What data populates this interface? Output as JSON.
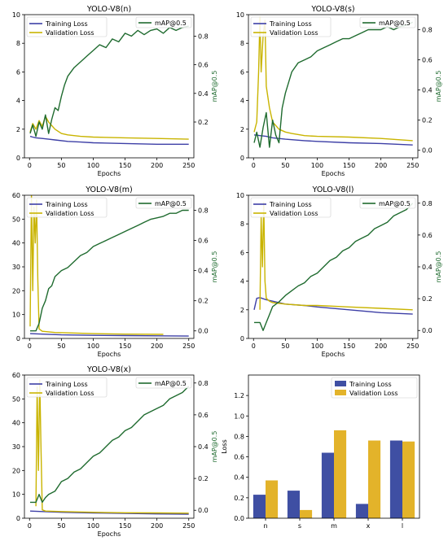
{
  "colors": {
    "training": "#3d3fa6",
    "validation": "#c9b400",
    "map": "#1f6b2f",
    "bar_training": "#3f4fa3",
    "bar_validation": "#e3b32a",
    "map_axis_label": "#1f6b2f"
  },
  "chart_data": [
    {
      "type": "line",
      "title": "YOLO-V8(n)",
      "xlabel": "Epochs",
      "ylabel": "",
      "y2label": "mAP@0.5",
      "xlim": [
        -8,
        258
      ],
      "ylim": [
        0,
        10
      ],
      "y2lim": [
        -0.05,
        0.95
      ],
      "xticks": [
        0,
        50,
        100,
        150,
        200,
        250
      ],
      "yticks": [
        0,
        2,
        4,
        6,
        8,
        10
      ],
      "y2ticks": [
        0.2,
        0.4,
        0.6,
        0.8
      ],
      "legend_left": [
        "Training Loss",
        "Validation Loss"
      ],
      "legend_right": [
        "mAP@0.5"
      ],
      "series": [
        {
          "name": "Training Loss",
          "axis": "left",
          "x": [
            1,
            5,
            10,
            20,
            30,
            40,
            60,
            80,
            100,
            150,
            200,
            250
          ],
          "y": [
            1.5,
            1.45,
            1.4,
            1.35,
            1.3,
            1.25,
            1.15,
            1.1,
            1.05,
            1.0,
            0.95,
            0.95
          ]
        },
        {
          "name": "Validation Loss",
          "axis": "left",
          "x": [
            1,
            5,
            10,
            15,
            20,
            25,
            30,
            40,
            50,
            60,
            80,
            100,
            150,
            200,
            250
          ],
          "y": [
            1.8,
            2.4,
            2.0,
            2.6,
            2.2,
            2.9,
            2.5,
            2.0,
            1.7,
            1.6,
            1.5,
            1.45,
            1.4,
            1.35,
            1.3
          ]
        },
        {
          "name": "mAP@0.5",
          "axis": "right",
          "x": [
            1,
            5,
            10,
            15,
            20,
            25,
            30,
            35,
            40,
            45,
            50,
            55,
            60,
            70,
            80,
            90,
            100,
            110,
            120,
            130,
            140,
            150,
            160,
            170,
            180,
            190,
            200,
            210,
            220,
            230,
            240,
            250
          ],
          "y": [
            0.12,
            0.18,
            0.1,
            0.2,
            0.15,
            0.25,
            0.12,
            0.22,
            0.3,
            0.28,
            0.38,
            0.46,
            0.52,
            0.58,
            0.62,
            0.66,
            0.7,
            0.74,
            0.72,
            0.78,
            0.76,
            0.82,
            0.8,
            0.84,
            0.81,
            0.84,
            0.85,
            0.82,
            0.86,
            0.84,
            0.86,
            0.87
          ]
        }
      ]
    },
    {
      "type": "line",
      "title": "YOLO-V8(s)",
      "xlabel": "Epochs",
      "ylabel": "",
      "y2label": "mAP@0.5",
      "xlim": [
        -8,
        258
      ],
      "ylim": [
        0,
        10
      ],
      "y2lim": [
        -0.05,
        0.9
      ],
      "xticks": [
        0,
        50,
        100,
        150,
        200,
        250
      ],
      "yticks": [
        0,
        2,
        4,
        6,
        8,
        10
      ],
      "y2ticks": [
        0.0,
        0.2,
        0.4,
        0.6,
        0.8
      ],
      "legend_left": [
        "Training Loss",
        "Validation Loss"
      ],
      "legend_right": [
        "mAP@0.5"
      ],
      "series": [
        {
          "name": "Training Loss",
          "axis": "left",
          "x": [
            1,
            10,
            20,
            30,
            50,
            80,
            100,
            150,
            200,
            250
          ],
          "y": [
            1.6,
            1.55,
            1.5,
            1.4,
            1.3,
            1.2,
            1.15,
            1.05,
            1.0,
            0.9
          ]
        },
        {
          "name": "Validation Loss",
          "axis": "left",
          "x": [
            1,
            5,
            8,
            10,
            12,
            15,
            18,
            20,
            25,
            30,
            40,
            50,
            60,
            80,
            100,
            150,
            200,
            250
          ],
          "y": [
            1.8,
            2.5,
            6.0,
            9.8,
            6.0,
            8.5,
            9.6,
            5.0,
            3.5,
            2.5,
            2.0,
            1.8,
            1.7,
            1.55,
            1.5,
            1.45,
            1.35,
            1.2
          ]
        },
        {
          "name": "mAP@0.5",
          "axis": "right",
          "x": [
            1,
            5,
            10,
            15,
            20,
            25,
            30,
            35,
            40,
            45,
            50,
            55,
            60,
            70,
            80,
            90,
            100,
            110,
            120,
            130,
            140,
            150,
            160,
            170,
            180,
            190,
            200,
            210,
            220,
            230,
            240,
            250
          ],
          "y": [
            0.05,
            0.12,
            0.02,
            0.15,
            0.25,
            0.02,
            0.2,
            0.1,
            0.05,
            0.28,
            0.38,
            0.45,
            0.52,
            0.58,
            0.6,
            0.62,
            0.66,
            0.68,
            0.7,
            0.72,
            0.74,
            0.74,
            0.76,
            0.78,
            0.8,
            0.8,
            0.8,
            0.82,
            0.8,
            0.82,
            0.83,
            0.85
          ]
        }
      ]
    },
    {
      "type": "line",
      "title": "YOLO-V8(m)",
      "xlabel": "Epochs",
      "ylabel": "",
      "y2label": "mAP@0.5",
      "xlim": [
        -8,
        258
      ],
      "ylim": [
        0,
        60
      ],
      "y2lim": [
        -0.05,
        0.9
      ],
      "xticks": [
        0,
        50,
        100,
        150,
        200,
        250
      ],
      "yticks": [
        0,
        10,
        20,
        30,
        40,
        50,
        60
      ],
      "y2ticks": [
        0.0,
        0.2,
        0.4,
        0.6,
        0.8
      ],
      "legend_left": [
        "Training Loss",
        "Validation Loss"
      ],
      "legend_right": [
        "mAP@0.5"
      ],
      "series": [
        {
          "name": "Training Loss",
          "axis": "left",
          "x": [
            1,
            20,
            50,
            100,
            150,
            200,
            250
          ],
          "y": [
            2.0,
            1.8,
            1.5,
            1.3,
            1.2,
            1.1,
            1.0
          ]
        },
        {
          "name": "Validation Loss",
          "axis": "left",
          "x": [
            1,
            3,
            5,
            7,
            9,
            11,
            13,
            15,
            20,
            40,
            100,
            150,
            210
          ],
          "y": [
            5.0,
            60,
            20,
            55,
            40,
            58,
            25,
            4.0,
            3.0,
            2.5,
            2.0,
            1.8,
            1.7
          ]
        },
        {
          "name": "mAP@0.5",
          "axis": "right",
          "x": [
            1,
            5,
            10,
            15,
            20,
            25,
            30,
            35,
            40,
            50,
            60,
            70,
            80,
            90,
            100,
            110,
            120,
            130,
            140,
            150,
            160,
            170,
            180,
            190,
            200,
            210,
            220,
            230,
            240,
            250
          ],
          "y": [
            0.0,
            0.0,
            0.0,
            0.05,
            0.15,
            0.2,
            0.28,
            0.3,
            0.36,
            0.4,
            0.42,
            0.46,
            0.5,
            0.52,
            0.56,
            0.58,
            0.6,
            0.62,
            0.64,
            0.66,
            0.68,
            0.7,
            0.72,
            0.74,
            0.75,
            0.76,
            0.78,
            0.78,
            0.8,
            0.8
          ]
        }
      ]
    },
    {
      "type": "line",
      "title": "YOLO-V8(l)",
      "xlabel": "Epochs",
      "ylabel": "",
      "y2label": "mAP@0.5",
      "xlim": [
        -8,
        258
      ],
      "ylim": [
        0,
        10
      ],
      "y2lim": [
        -0.05,
        0.85
      ],
      "xticks": [
        0,
        50,
        100,
        150,
        200,
        250
      ],
      "yticks": [
        0,
        2,
        4,
        6,
        8,
        10
      ],
      "y2ticks": [
        0.0,
        0.2,
        0.4,
        0.6,
        0.8
      ],
      "legend_left": [
        "Training Loss",
        "Validation Loss"
      ],
      "legend_right": [
        "mAP@0.5"
      ],
      "series": [
        {
          "name": "Training Loss",
          "axis": "left",
          "x": [
            1,
            5,
            10,
            20,
            30,
            50,
            80,
            100,
            150,
            200,
            250
          ],
          "y": [
            2.0,
            2.8,
            2.85,
            2.7,
            2.6,
            2.4,
            2.3,
            2.2,
            2.0,
            1.8,
            1.7
          ]
        },
        {
          "name": "Validation Loss",
          "axis": "left",
          "x": [
            10,
            12,
            14,
            16,
            18,
            20,
            25,
            30,
            50,
            80,
            100,
            150,
            200,
            250
          ],
          "y": [
            2.0,
            8.5,
            5.0,
            9.5,
            4.0,
            2.8,
            2.6,
            2.5,
            2.4,
            2.3,
            2.3,
            2.2,
            2.1,
            2.0
          ]
        },
        {
          "name": "mAP@0.5",
          "axis": "right",
          "x": [
            1,
            10,
            15,
            20,
            25,
            30,
            40,
            50,
            60,
            70,
            80,
            90,
            100,
            110,
            120,
            130,
            140,
            150,
            160,
            170,
            180,
            190,
            200,
            210,
            220,
            230,
            240,
            250
          ],
          "y": [
            0.05,
            0.05,
            0.0,
            0.05,
            0.1,
            0.15,
            0.18,
            0.22,
            0.25,
            0.28,
            0.3,
            0.34,
            0.36,
            0.4,
            0.44,
            0.46,
            0.5,
            0.52,
            0.56,
            0.58,
            0.6,
            0.64,
            0.66,
            0.68,
            0.72,
            0.74,
            0.76,
            0.8
          ]
        }
      ]
    },
    {
      "type": "line",
      "title": "YOLO-V8(x)",
      "xlabel": "Epochs",
      "ylabel": "",
      "y2label": "mAP@0.5",
      "xlim": [
        -8,
        258
      ],
      "ylim": [
        0,
        60
      ],
      "y2lim": [
        -0.05,
        0.85
      ],
      "xticks": [
        0,
        50,
        100,
        150,
        200,
        250
      ],
      "yticks": [
        0,
        10,
        20,
        30,
        40,
        50,
        60
      ],
      "y2ticks": [
        0.0,
        0.2,
        0.4,
        0.6,
        0.8
      ],
      "legend_left": [
        "Training Loss",
        "Validation Loss"
      ],
      "legend_right": [
        "mAP@0.5"
      ],
      "series": [
        {
          "name": "Training Loss",
          "axis": "left",
          "x": [
            1,
            20,
            50,
            100,
            150,
            200,
            250
          ],
          "y": [
            3.0,
            2.8,
            2.5,
            2.2,
            2.0,
            1.8,
            1.7
          ]
        },
        {
          "name": "Validation Loss",
          "axis": "left",
          "x": [
            10,
            12,
            14,
            16,
            18,
            20,
            25,
            50,
            100,
            150,
            200,
            250
          ],
          "y": [
            5.0,
            55,
            20,
            58,
            30,
            3.5,
            3.0,
            2.8,
            2.5,
            2.3,
            2.2,
            2.1
          ]
        },
        {
          "name": "mAP@0.5",
          "axis": "right",
          "x": [
            1,
            10,
            15,
            20,
            25,
            30,
            40,
            50,
            60,
            70,
            80,
            90,
            100,
            110,
            120,
            130,
            140,
            150,
            160,
            170,
            180,
            190,
            200,
            210,
            220,
            230,
            240,
            250
          ],
          "y": [
            0.05,
            0.05,
            0.1,
            0.05,
            0.08,
            0.1,
            0.12,
            0.18,
            0.2,
            0.24,
            0.26,
            0.3,
            0.34,
            0.36,
            0.4,
            0.44,
            0.46,
            0.5,
            0.52,
            0.56,
            0.6,
            0.62,
            0.64,
            0.66,
            0.7,
            0.72,
            0.74,
            0.78
          ]
        }
      ]
    },
    {
      "type": "bar",
      "title": "",
      "xlabel": "",
      "ylabel": "Loss",
      "ylim": [
        0,
        1.4
      ],
      "yticks": [
        0.0,
        0.2,
        0.4,
        0.6,
        0.8,
        1.0,
        1.2
      ],
      "categories": [
        "n",
        "s",
        "m",
        "x",
        "l"
      ],
      "series": [
        {
          "name": "Training Loss",
          "values": [
            0.23,
            0.27,
            0.64,
            0.14,
            0.76
          ]
        },
        {
          "name": "Validation Loss",
          "values": [
            0.37,
            0.08,
            0.86,
            0.76,
            0.75
          ]
        }
      ]
    }
  ]
}
